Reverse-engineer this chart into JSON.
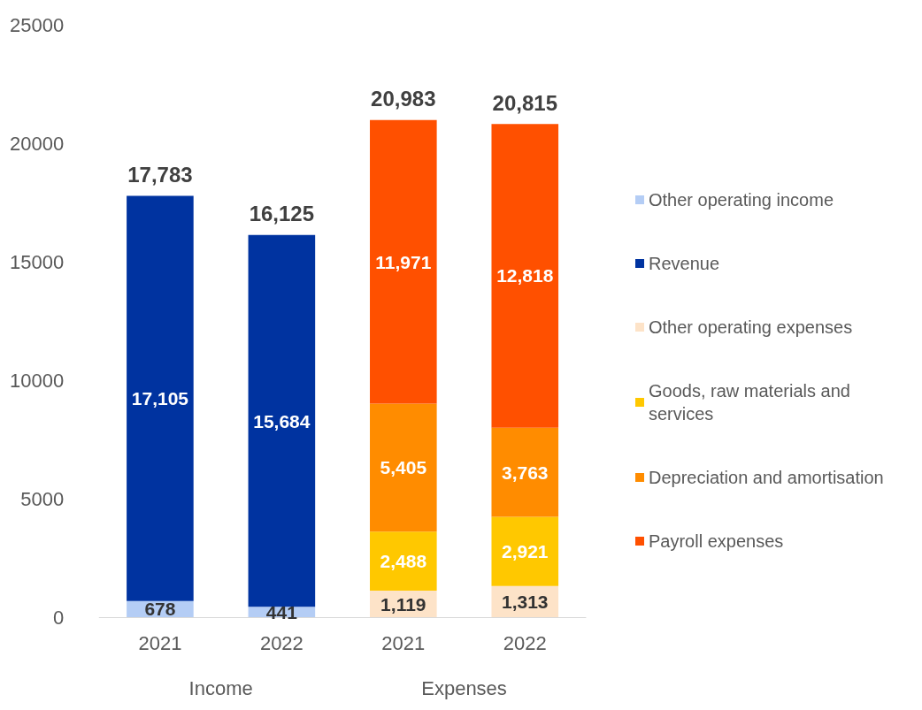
{
  "chart_data": {
    "type": "bar",
    "stacked": true,
    "categories": [
      "2021",
      "2022",
      "2021",
      "2022"
    ],
    "series": [
      {
        "name": "Other operating income",
        "color": "#b4cdf5",
        "values": [
          678,
          441,
          null,
          null
        ],
        "value_labels": [
          "678",
          "441",
          null,
          null
        ]
      },
      {
        "name": "Revenue",
        "color": "#0033a0",
        "values": [
          17105,
          15684,
          null,
          null
        ],
        "value_labels": [
          "17,105",
          "15,684",
          null,
          null
        ]
      },
      {
        "name": "Other operating expenses",
        "color": "#fde3c8",
        "values": [
          null,
          null,
          1119,
          1313
        ],
        "value_labels": [
          null,
          null,
          "1,119",
          "1,313"
        ]
      },
      {
        "name": "Goods, raw materials and services",
        "color": "#ffc800",
        "values": [
          null,
          null,
          2488,
          2921
        ],
        "value_labels": [
          null,
          null,
          "2,488",
          "2,921"
        ]
      },
      {
        "name": "Depreciation and amortisation",
        "color": "#ff8c00",
        "values": [
          null,
          null,
          5405,
          3763
        ],
        "value_labels": [
          null,
          null,
          "5,405",
          "3,763"
        ]
      },
      {
        "name": "Payroll expenses",
        "color": "#ff5000",
        "values": [
          null,
          null,
          11971,
          12818
        ],
        "value_labels": [
          null,
          null,
          "11,971",
          "12,818"
        ]
      }
    ],
    "ylim": [
      0,
      25000
    ],
    "yticks": [
      0,
      5000,
      10000,
      15000,
      20000,
      25000
    ],
    "grid": false,
    "legend": "right",
    "totals": [
      "17,783",
      "16,125",
      "20,983",
      "20,815"
    ],
    "annotations": [
      "Income",
      "Expenses"
    ]
  }
}
